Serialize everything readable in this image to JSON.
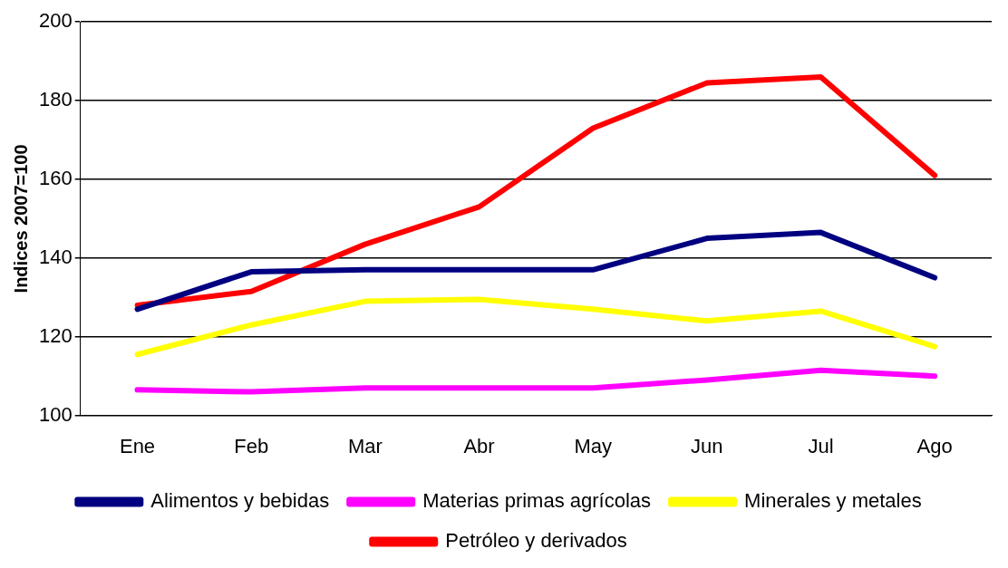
{
  "chart_data": {
    "type": "line",
    "ylabel": "Indices 2007=100",
    "categories": [
      "Ene",
      "Feb",
      "Mar",
      "Abr",
      "May",
      "Jun",
      "Jul",
      "Ago"
    ],
    "series": [
      {
        "name": "Alimentos y bebidas",
        "color": "#000080",
        "values": [
          127,
          136.5,
          137,
          137,
          137,
          145,
          146.5,
          135
        ]
      },
      {
        "name": "Materias primas agrícolas",
        "color": "#ff00ff",
        "values": [
          106.5,
          106,
          107,
          107,
          107,
          109,
          111.5,
          110
        ]
      },
      {
        "name": "Minerales y metales",
        "color": "#ffff00",
        "values": [
          115.5,
          123,
          129,
          129.5,
          127,
          124,
          126.5,
          117.5
        ]
      },
      {
        "name": "Petróleo y derivados",
        "color": "#ff0000",
        "values": [
          128,
          131.5,
          143.5,
          153,
          173,
          184.5,
          186,
          161
        ]
      }
    ],
    "ylim": [
      100,
      200
    ],
    "yticks": [
      100,
      120,
      140,
      160,
      180,
      200
    ],
    "grid": "y",
    "legend": "bottom",
    "marker": "none",
    "line_style": "solid"
  }
}
